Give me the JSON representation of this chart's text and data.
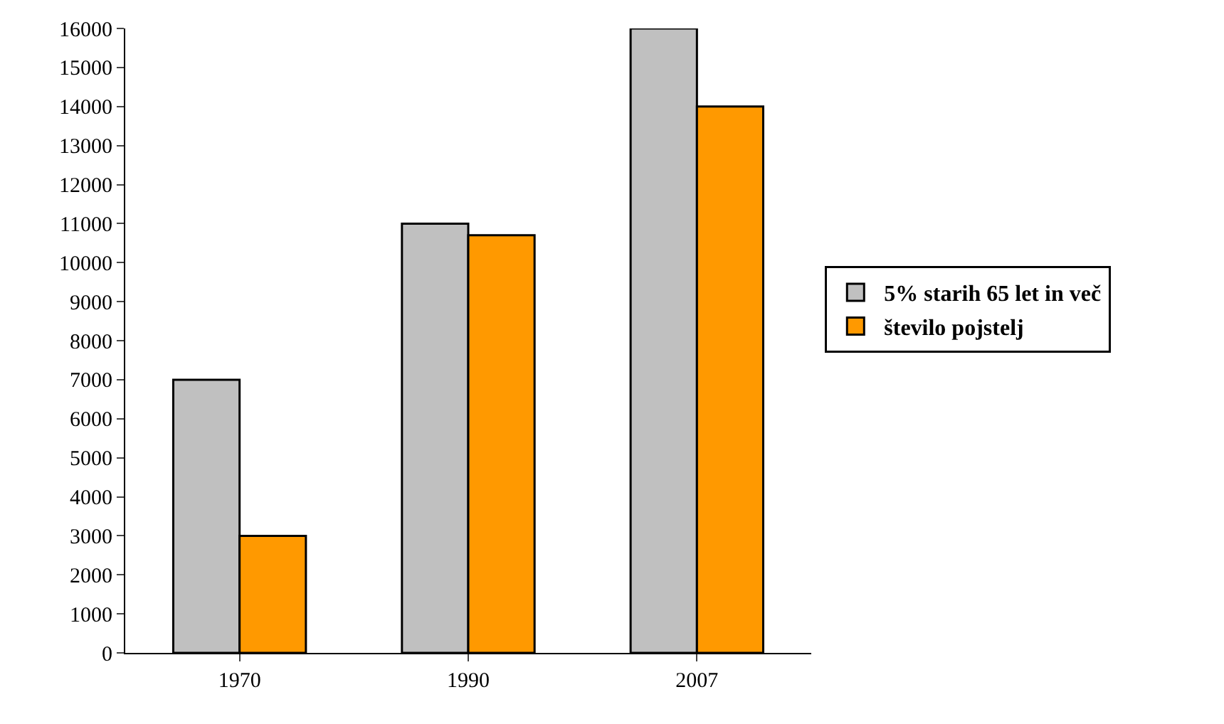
{
  "chart_data": {
    "type": "bar",
    "categories": [
      "1970",
      "1990",
      "2007"
    ],
    "series": [
      {
        "name": "5% starih 65 let in več",
        "color": "#c0c0c0",
        "values": [
          7000,
          11000,
          16000
        ]
      },
      {
        "name": "število pojstelj",
        "color": "#ff9900",
        "values": [
          3000,
          10700,
          14000
        ]
      }
    ],
    "ylim": [
      0,
      16000
    ],
    "yticks": [
      0,
      1000,
      2000,
      3000,
      4000,
      5000,
      6000,
      7000,
      8000,
      9000,
      10000,
      11000,
      12000,
      13000,
      14000,
      15000,
      16000
    ],
    "legend": "right"
  }
}
